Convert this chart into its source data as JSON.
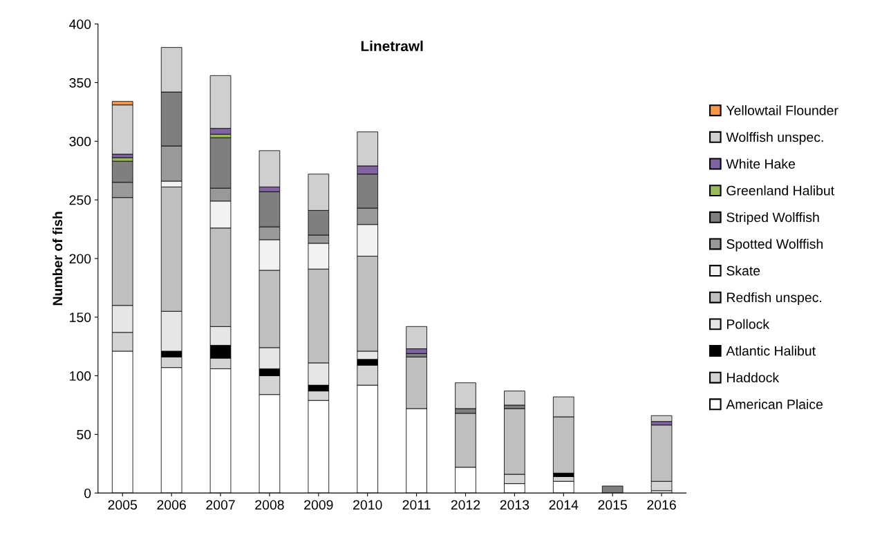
{
  "chart_data": {
    "type": "bar",
    "title": "Linetrawl",
    "ylabel": "Number of fish",
    "stacked": true,
    "categories": [
      "2005",
      "2006",
      "2007",
      "2008",
      "2009",
      "2010",
      "2011",
      "2012",
      "2013",
      "2014",
      "2015",
      "2016"
    ],
    "ylim": [
      0,
      400
    ],
    "yticks": [
      0,
      50,
      100,
      150,
      200,
      250,
      300,
      350,
      400
    ],
    "grid": false,
    "legend": "right",
    "series": [
      {
        "name": "American Plaice",
        "color": "#ffffff",
        "values": [
          121,
          107,
          106,
          84,
          79,
          92,
          72,
          22,
          8,
          10,
          0,
          2
        ]
      },
      {
        "name": "Haddock",
        "color": "#d4d4d4",
        "values": [
          16,
          9,
          9,
          16,
          8,
          17,
          0,
          0,
          8,
          4,
          0,
          8
        ]
      },
      {
        "name": "Atlantic Halibut",
        "color": "#000000",
        "values": [
          0,
          5,
          11,
          6,
          5,
          5,
          0,
          0,
          0,
          3,
          0,
          0
        ]
      },
      {
        "name": "Pollock",
        "color": "#e6e6e6",
        "values": [
          23,
          34,
          16,
          18,
          19,
          7,
          0,
          0,
          0,
          0,
          0,
          0
        ]
      },
      {
        "name": "Redfish unspec.",
        "color": "#bfbfbf",
        "values": [
          92,
          106,
          84,
          66,
          80,
          81,
          44,
          46,
          56,
          48,
          0,
          48
        ]
      },
      {
        "name": "Skate",
        "color": "#f2f2f2",
        "values": [
          0,
          5,
          23,
          26,
          22,
          27,
          0,
          0,
          0,
          0,
          0,
          0
        ]
      },
      {
        "name": "Spotted Wolffish",
        "color": "#999999",
        "values": [
          13,
          30,
          11,
          11,
          7,
          14,
          0,
          0,
          0,
          0,
          0,
          0
        ]
      },
      {
        "name": "Striped Wolffish",
        "color": "#7f7f7f",
        "values": [
          18,
          46,
          43,
          30,
          21,
          29,
          3,
          4,
          3,
          0,
          6,
          0
        ]
      },
      {
        "name": "Greenland Halibut",
        "color": "#9bbb59",
        "values": [
          3,
          0,
          3,
          0,
          0,
          0,
          0,
          0,
          0,
          0,
          0,
          0
        ]
      },
      {
        "name": "White Hake",
        "color": "#8064a2",
        "values": [
          3,
          0,
          5,
          4,
          0,
          7,
          4,
          0,
          0,
          0,
          0,
          3
        ]
      },
      {
        "name": "Wolffish unspec.",
        "color": "#cfcfcf",
        "values": [
          42,
          38,
          45,
          31,
          31,
          29,
          19,
          22,
          12,
          17,
          0,
          5
        ]
      },
      {
        "name": "Yellowtail Flounder",
        "color": "#f79646",
        "values": [
          3,
          0,
          0,
          0,
          0,
          0,
          0,
          0,
          0,
          0,
          0,
          0
        ]
      }
    ]
  }
}
